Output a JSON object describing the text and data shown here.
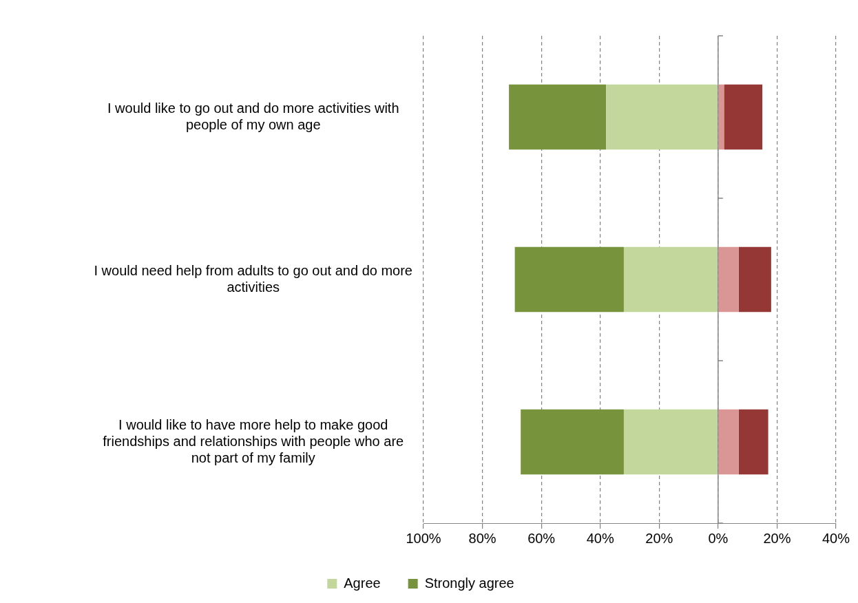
{
  "chart_data": {
    "type": "bar",
    "orientation": "horizontal",
    "stacked": true,
    "categories": [
      "I would like to go out and do more activities with people of my own age",
      "I would need help from adults to go out and do more activities",
      "I would like to have more help to make good friendships and relationships with people who are not part of my family"
    ],
    "series": [
      {
        "name": "Agree",
        "color": "#c3d69b",
        "values": [
          -38,
          -32,
          -32
        ]
      },
      {
        "name": "Strongly agree",
        "color": "#77933c",
        "values": [
          -33,
          -37,
          -35
        ]
      },
      {
        "color": "#d99694",
        "values": [
          2,
          7,
          7
        ]
      },
      {
        "color": "#953735",
        "values": [
          13,
          11,
          10
        ]
      }
    ],
    "xlim": [
      -100,
      40
    ],
    "xticks": [
      {
        "value": -100,
        "label": "100%"
      },
      {
        "value": -80,
        "label": "80%"
      },
      {
        "value": -60,
        "label": "60%"
      },
      {
        "value": -40,
        "label": "40%"
      },
      {
        "value": -20,
        "label": "20%"
      },
      {
        "value": 0,
        "label": "0%"
      },
      {
        "value": 20,
        "label": "20%"
      },
      {
        "value": 40,
        "label": "40%"
      }
    ],
    "grid": "x",
    "legend": "bottom"
  }
}
